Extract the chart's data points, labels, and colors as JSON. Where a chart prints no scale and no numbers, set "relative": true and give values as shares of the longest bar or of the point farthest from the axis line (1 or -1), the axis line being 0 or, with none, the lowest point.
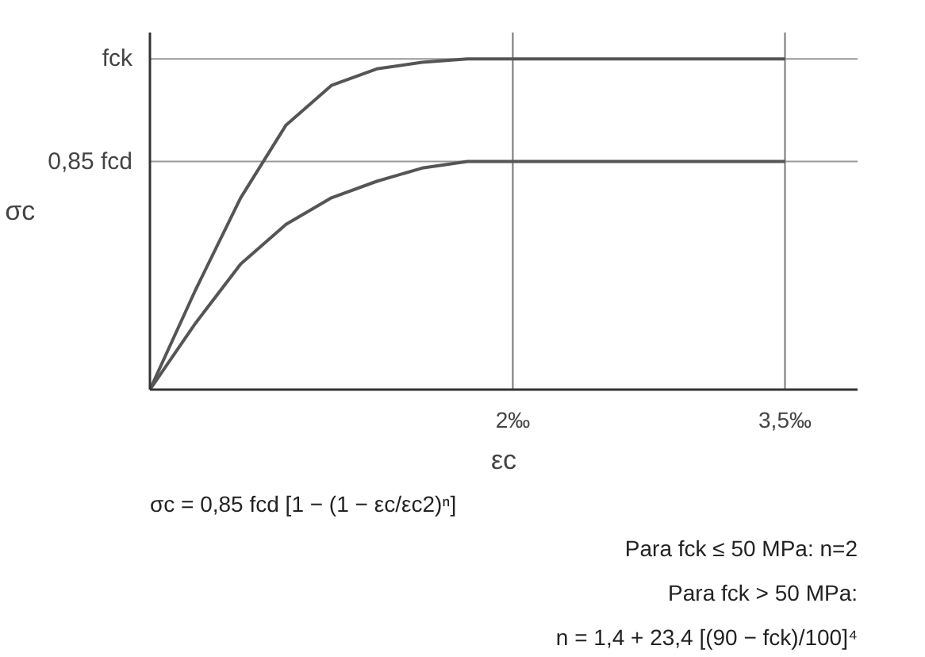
{
  "chart_data": {
    "type": "line",
    "relative": true,
    "xlabel": "εc",
    "ylabel": "σc",
    "xlim": [
      0,
      3.9
    ],
    "xticks": [
      {
        "value": 2,
        "label": "2‰"
      },
      {
        "value": 3.5,
        "label": "3,5‰"
      }
    ],
    "x": [
      0,
      0.25,
      0.5,
      0.75,
      1,
      1.25,
      1.5,
      1.75,
      2,
      3.5
    ],
    "series": [
      {
        "color": "#555555",
        "values": [
          0,
          0.3,
          0.58,
          0.8,
          0.92,
          0.97,
          0.99,
          1,
          1,
          1
        ]
      },
      {
        "color": "#555555",
        "values": [
          0,
          0.2,
          0.38,
          0.5,
          0.58,
          0.63,
          0.67,
          0.69,
          0.69,
          0.69
        ]
      }
    ],
    "ref_lines": [
      {
        "axis": "y",
        "value": 1,
        "label": "fck",
        "color": "#999999"
      },
      {
        "axis": "y",
        "value": 0.69,
        "label": "0,85 fcd",
        "color": "#999999"
      },
      {
        "axis": "x",
        "value": 2,
        "color": "#777777"
      },
      {
        "axis": "x",
        "value": 3.5,
        "color": "#777777"
      }
    ],
    "annotations": [
      "σc = 0,85 fcd [1 − (1 − εc/εc2)ⁿ]",
      "Para fck ≤ 50 MPa: n=2",
      "Para fck > 50 MPa:",
      "n = 1,4 + 23,4 [(90 − fck)/100]⁴"
    ],
    "grid": false,
    "tick_labels": "x"
  }
}
